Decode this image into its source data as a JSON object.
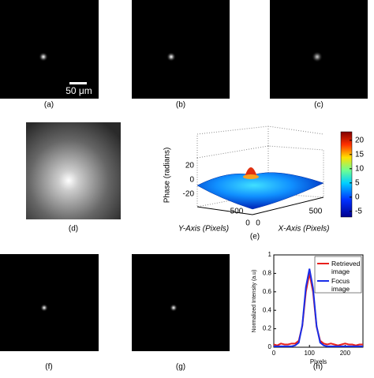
{
  "panel_labels": [
    "(a)",
    "(b)",
    "(c)",
    "(d)",
    "(e)",
    "(f)",
    "(g)",
    "(h)"
  ],
  "scale_bar": "50 μm",
  "surface_plot": {
    "zlabel": "Phase (radians)",
    "xlabel": "X-Axis (Pixels)",
    "ylabel": "Y-Axis (Pixels)",
    "zlim": [
      -30,
      30
    ],
    "zticks": [
      20,
      0,
      -20
    ],
    "xticks": [
      0,
      500
    ],
    "yticks": [
      500,
      0
    ],
    "colorbar_lim": [
      -7,
      23
    ],
    "colorbar_ticks": [
      20,
      15,
      10,
      5,
      0,
      -5
    ]
  },
  "chart_data": {
    "type": "line",
    "xlabel": "Pixels",
    "ylabel": "Normalized Intensity (a.u)",
    "x": [
      0,
      10,
      20,
      30,
      40,
      50,
      60,
      70,
      80,
      90,
      100,
      110,
      120,
      130,
      140,
      150,
      160,
      170,
      180,
      190,
      200,
      210,
      220,
      230,
      240,
      250
    ],
    "xlim": [
      0,
      250
    ],
    "xticks": [
      0,
      100,
      200
    ],
    "ylim": [
      0,
      1
    ],
    "yticks": [
      0,
      0.2,
      0.4,
      0.6,
      0.8,
      1
    ],
    "legend": "upper right",
    "series": [
      {
        "name": "Retrieved image",
        "color": "#e8201c",
        "values": [
          0.03,
          0.02,
          0.04,
          0.03,
          0.03,
          0.04,
          0.04,
          0.07,
          0.23,
          0.6,
          0.8,
          0.6,
          0.22,
          0.07,
          0.04,
          0.03,
          0.04,
          0.03,
          0.02,
          0.03,
          0.04,
          0.03,
          0.03,
          0.02,
          0.03,
          0.03
        ]
      },
      {
        "name": "Focus image",
        "color": "#1a2ee8",
        "values": [
          0.01,
          0.01,
          0.01,
          0.01,
          0.01,
          0.01,
          0.02,
          0.05,
          0.24,
          0.65,
          0.85,
          0.64,
          0.23,
          0.05,
          0.02,
          0.01,
          0.01,
          0.01,
          0.01,
          0.01,
          0.01,
          0.01,
          0.01,
          0.01,
          0.01,
          0.01
        ]
      }
    ]
  }
}
